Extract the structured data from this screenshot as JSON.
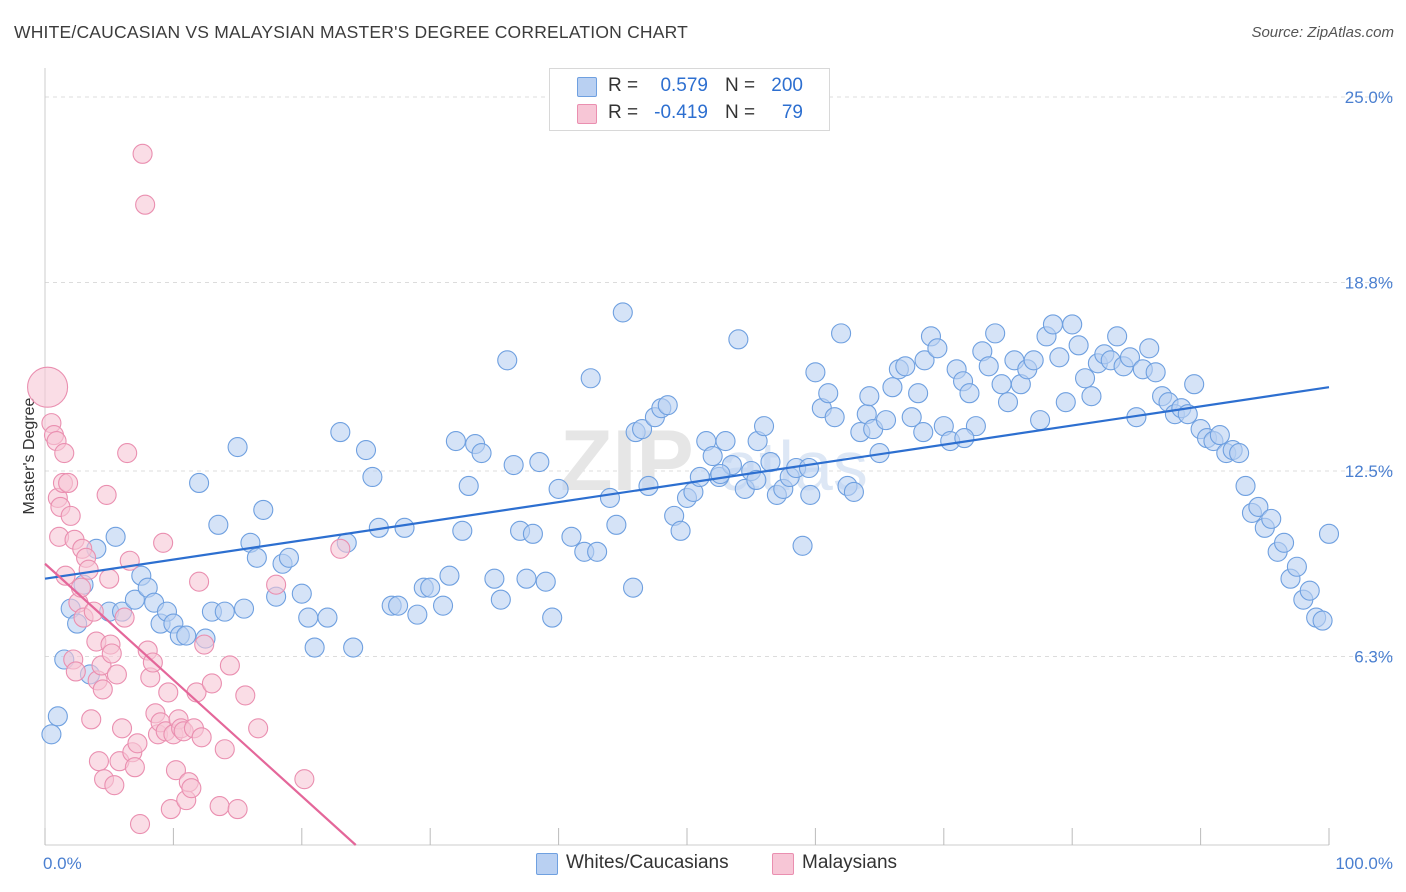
{
  "title": "WHITE/CAUCASIAN VS MALAYSIAN MASTER'S DEGREE CORRELATION CHART",
  "source": "Source: ZipAtlas.com",
  "watermark": {
    "zip": "ZIP",
    "atlas": "atlas"
  },
  "legend": {
    "rows": [
      {
        "r_label": "R =",
        "r_value": "0.579",
        "n_label": "N =",
        "n_value": "200",
        "color": "#6fa0e0",
        "fill": "#b9d0f2"
      },
      {
        "r_label": "R =",
        "r_value": "-0.419",
        "n_label": "N =",
        "n_value": "79",
        "color": "#ea8fb0",
        "fill": "#f7c6d6"
      }
    ]
  },
  "bottom_legend": [
    {
      "label": "Whites/Caucasians",
      "color": "#6fa0e0",
      "fill": "#b9d0f2"
    },
    {
      "label": "Malaysians",
      "color": "#ea8fb0",
      "fill": "#f7c6d6"
    }
  ],
  "chart_data": {
    "type": "scatter",
    "title": "WHITE/CAUCASIAN VS MALAYSIAN MASTER'S DEGREE CORRELATION CHART",
    "xlabel": "",
    "ylabel": "Master's Degree",
    "xlim": [
      0,
      100
    ],
    "ylim": [
      0,
      25
    ],
    "x_tick_labels": [
      "0.0%",
      "100.0%"
    ],
    "y_ticks": [
      6.3,
      12.5,
      18.8,
      25.0
    ],
    "y_tick_labels": [
      "6.3%",
      "12.5%",
      "18.8%",
      "25.0%"
    ],
    "grid": true,
    "series": [
      {
        "name": "Whites/Caucasians",
        "color": "#6fa0e0",
        "fill": "#b9d0f2",
        "trend": {
          "x": [
            0,
            100
          ],
          "y": [
            8.9,
            15.3
          ]
        },
        "points": [
          [
            0.5,
            3.7
          ],
          [
            1,
            4.3
          ],
          [
            1.5,
            6.2
          ],
          [
            2,
            7.9
          ],
          [
            2.5,
            7.4
          ],
          [
            3,
            8.7
          ],
          [
            3.5,
            5.7
          ],
          [
            4,
            9.9
          ],
          [
            5,
            7.8
          ],
          [
            5.5,
            10.3
          ],
          [
            6,
            7.8
          ],
          [
            7,
            8.2
          ],
          [
            7.5,
            9.0
          ],
          [
            8,
            8.6
          ],
          [
            8.5,
            8.1
          ],
          [
            9,
            7.4
          ],
          [
            9.5,
            7.8
          ],
          [
            10,
            7.4
          ],
          [
            10.5,
            7.0
          ],
          [
            11,
            7.0
          ],
          [
            12,
            12.1
          ],
          [
            12.5,
            6.9
          ],
          [
            13,
            7.8
          ],
          [
            13.5,
            10.7
          ],
          [
            14,
            7.8
          ],
          [
            15,
            13.3
          ],
          [
            15.5,
            7.9
          ],
          [
            16,
            10.1
          ],
          [
            16.5,
            9.6
          ],
          [
            17,
            11.2
          ],
          [
            18,
            8.3
          ],
          [
            18.5,
            9.4
          ],
          [
            19,
            9.6
          ],
          [
            20,
            8.4
          ],
          [
            20.5,
            7.6
          ],
          [
            21,
            6.6
          ],
          [
            22,
            7.6
          ],
          [
            23,
            13.8
          ],
          [
            23.5,
            10.1
          ],
          [
            24,
            6.6
          ],
          [
            25,
            13.2
          ],
          [
            25.5,
            12.3
          ],
          [
            26,
            10.6
          ],
          [
            27,
            8.0
          ],
          [
            27.5,
            8.0
          ],
          [
            28,
            10.6
          ],
          [
            29,
            7.7
          ],
          [
            29.5,
            8.6
          ],
          [
            30,
            8.6
          ],
          [
            31,
            8.0
          ],
          [
            31.5,
            9.0
          ],
          [
            32,
            13.5
          ],
          [
            32.5,
            10.5
          ],
          [
            33,
            12.0
          ],
          [
            33.5,
            13.4
          ],
          [
            34,
            13.1
          ],
          [
            35,
            8.9
          ],
          [
            35.5,
            8.2
          ],
          [
            36,
            16.2
          ],
          [
            36.5,
            12.7
          ],
          [
            37,
            10.5
          ],
          [
            37.5,
            8.9
          ],
          [
            38,
            10.4
          ],
          [
            38.5,
            12.8
          ],
          [
            39,
            8.8
          ],
          [
            39.5,
            7.6
          ],
          [
            40,
            11.9
          ],
          [
            41,
            10.3
          ],
          [
            42,
            9.8
          ],
          [
            42.5,
            15.6
          ],
          [
            43,
            9.8
          ],
          [
            44,
            11.6
          ],
          [
            44.5,
            10.7
          ],
          [
            45,
            17.8
          ],
          [
            46,
            13.8
          ],
          [
            46.5,
            13.9
          ],
          [
            47,
            12.0
          ],
          [
            47.5,
            14.3
          ],
          [
            48,
            14.6
          ],
          [
            48.5,
            14.7
          ],
          [
            49,
            11.0
          ],
          [
            49.5,
            10.5
          ],
          [
            50,
            11.6
          ],
          [
            50.5,
            11.8
          ],
          [
            51,
            12.3
          ],
          [
            51.5,
            13.5
          ],
          [
            52,
            13.0
          ],
          [
            52.5,
            12.3
          ],
          [
            53,
            13.5
          ],
          [
            53.5,
            12.7
          ],
          [
            54,
            16.9
          ],
          [
            54.5,
            11.9
          ],
          [
            55,
            12.5
          ],
          [
            55.5,
            13.5
          ],
          [
            56,
            14.0
          ],
          [
            56.5,
            12.8
          ],
          [
            57,
            11.7
          ],
          [
            57.5,
            11.9
          ],
          [
            58,
            12.3
          ],
          [
            58.5,
            12.6
          ],
          [
            59,
            10.0
          ],
          [
            59.5,
            12.6
          ],
          [
            60,
            15.8
          ],
          [
            60.5,
            14.6
          ],
          [
            61,
            15.1
          ],
          [
            61.5,
            14.3
          ],
          [
            62,
            17.1
          ],
          [
            62.5,
            12.0
          ],
          [
            63,
            11.8
          ],
          [
            63.5,
            13.8
          ],
          [
            64,
            14.4
          ],
          [
            64.5,
            13.9
          ],
          [
            65,
            13.1
          ],
          [
            65.5,
            14.2
          ],
          [
            66,
            15.3
          ],
          [
            66.5,
            15.9
          ],
          [
            67,
            16.0
          ],
          [
            67.5,
            14.3
          ],
          [
            68,
            15.1
          ],
          [
            68.5,
            16.2
          ],
          [
            69,
            17.0
          ],
          [
            69.5,
            16.6
          ],
          [
            70,
            14.0
          ],
          [
            70.5,
            13.5
          ],
          [
            71,
            15.9
          ],
          [
            71.5,
            15.5
          ],
          [
            72,
            15.1
          ],
          [
            72.5,
            14.0
          ],
          [
            73,
            16.5
          ],
          [
            73.5,
            16.0
          ],
          [
            74,
            17.1
          ],
          [
            74.5,
            15.4
          ],
          [
            75,
            14.8
          ],
          [
            75.5,
            16.2
          ],
          [
            76,
            15.4
          ],
          [
            76.5,
            15.9
          ],
          [
            77,
            16.2
          ],
          [
            77.5,
            14.2
          ],
          [
            78,
            17.0
          ],
          [
            78.5,
            17.4
          ],
          [
            79,
            16.3
          ],
          [
            79.5,
            14.8
          ],
          [
            80,
            17.4
          ],
          [
            80.5,
            16.7
          ],
          [
            81,
            15.6
          ],
          [
            81.5,
            15.0
          ],
          [
            82,
            16.1
          ],
          [
            82.5,
            16.4
          ],
          [
            83,
            16.2
          ],
          [
            83.5,
            17.0
          ],
          [
            84,
            16.0
          ],
          [
            84.5,
            16.3
          ],
          [
            85,
            14.3
          ],
          [
            85.5,
            15.9
          ],
          [
            86,
            16.6
          ],
          [
            86.5,
            15.8
          ],
          [
            87,
            15.0
          ],
          [
            87.5,
            14.8
          ],
          [
            88,
            14.4
          ],
          [
            88.5,
            14.6
          ],
          [
            89,
            14.4
          ],
          [
            89.5,
            15.4
          ],
          [
            90,
            13.9
          ],
          [
            90.5,
            13.6
          ],
          [
            91,
            13.5
          ],
          [
            91.5,
            13.7
          ],
          [
            92,
            13.1
          ],
          [
            92.5,
            13.2
          ],
          [
            93,
            13.1
          ],
          [
            93.5,
            12.0
          ],
          [
            94,
            11.1
          ],
          [
            94.5,
            11.3
          ],
          [
            95,
            10.6
          ],
          [
            95.5,
            10.9
          ],
          [
            96,
            9.8
          ],
          [
            96.5,
            10.1
          ],
          [
            97,
            8.9
          ],
          [
            97.5,
            9.3
          ],
          [
            98,
            8.2
          ],
          [
            98.5,
            8.5
          ],
          [
            99,
            7.6
          ],
          [
            99.5,
            7.5
          ],
          [
            100,
            10.4
          ],
          [
            45.8,
            8.6
          ],
          [
            52.6,
            12.4
          ],
          [
            55.4,
            12.2
          ],
          [
            59.6,
            11.7
          ],
          [
            64.2,
            15.0
          ],
          [
            68.4,
            13.8
          ],
          [
            71.6,
            13.6
          ]
        ]
      },
      {
        "name": "Malaysians",
        "color": "#ea8fb0",
        "fill": "#f7c6d6",
        "trend": {
          "x": [
            0,
            24.2
          ],
          "y": [
            9.4,
            0
          ]
        },
        "points": [
          [
            0.2,
            15.3
          ],
          [
            0.5,
            14.1
          ],
          [
            0.7,
            13.7
          ],
          [
            0.9,
            13.5
          ],
          [
            1.0,
            11.6
          ],
          [
            1.1,
            10.3
          ],
          [
            1.2,
            11.3
          ],
          [
            1.4,
            12.1
          ],
          [
            1.5,
            13.1
          ],
          [
            1.6,
            9.0
          ],
          [
            1.8,
            12.1
          ],
          [
            2.0,
            11.0
          ],
          [
            2.2,
            6.2
          ],
          [
            2.3,
            10.2
          ],
          [
            2.4,
            5.8
          ],
          [
            2.6,
            8.1
          ],
          [
            2.8,
            8.6
          ],
          [
            2.9,
            9.9
          ],
          [
            3.0,
            7.6
          ],
          [
            3.2,
            9.6
          ],
          [
            3.4,
            9.2
          ],
          [
            3.6,
            4.2
          ],
          [
            3.8,
            7.8
          ],
          [
            4.0,
            6.8
          ],
          [
            4.1,
            5.5
          ],
          [
            4.2,
            2.8
          ],
          [
            4.4,
            6.0
          ],
          [
            4.5,
            5.2
          ],
          [
            4.6,
            2.2
          ],
          [
            4.8,
            11.7
          ],
          [
            5.0,
            8.9
          ],
          [
            5.1,
            6.7
          ],
          [
            5.2,
            6.4
          ],
          [
            5.4,
            2.0
          ],
          [
            5.6,
            5.7
          ],
          [
            5.8,
            2.8
          ],
          [
            6.0,
            3.9
          ],
          [
            6.2,
            7.6
          ],
          [
            6.4,
            13.1
          ],
          [
            6.6,
            9.5
          ],
          [
            6.8,
            3.1
          ],
          [
            7.0,
            2.6
          ],
          [
            7.2,
            3.4
          ],
          [
            7.4,
            0.7
          ],
          [
            7.6,
            23.1
          ],
          [
            7.8,
            21.4
          ],
          [
            8.0,
            6.5
          ],
          [
            8.2,
            5.6
          ],
          [
            8.4,
            6.1
          ],
          [
            8.6,
            4.4
          ],
          [
            8.8,
            3.7
          ],
          [
            9.0,
            4.1
          ],
          [
            9.2,
            10.1
          ],
          [
            9.4,
            3.8
          ],
          [
            9.6,
            5.1
          ],
          [
            9.8,
            1.2
          ],
          [
            10.0,
            3.7
          ],
          [
            10.2,
            2.5
          ],
          [
            10.4,
            4.2
          ],
          [
            10.6,
            3.9
          ],
          [
            10.8,
            3.8
          ],
          [
            11.0,
            1.5
          ],
          [
            11.2,
            2.1
          ],
          [
            11.4,
            1.9
          ],
          [
            11.6,
            3.9
          ],
          [
            11.8,
            5.1
          ],
          [
            12.0,
            8.8
          ],
          [
            12.2,
            3.6
          ],
          [
            12.4,
            6.7
          ],
          [
            13.0,
            5.4
          ],
          [
            13.6,
            1.3
          ],
          [
            14.0,
            3.2
          ],
          [
            14.4,
            6.0
          ],
          [
            15.0,
            1.2
          ],
          [
            15.6,
            5.0
          ],
          [
            16.6,
            3.9
          ],
          [
            18.0,
            8.7
          ],
          [
            20.2,
            2.2
          ],
          [
            23.0,
            9.9
          ]
        ]
      }
    ]
  }
}
